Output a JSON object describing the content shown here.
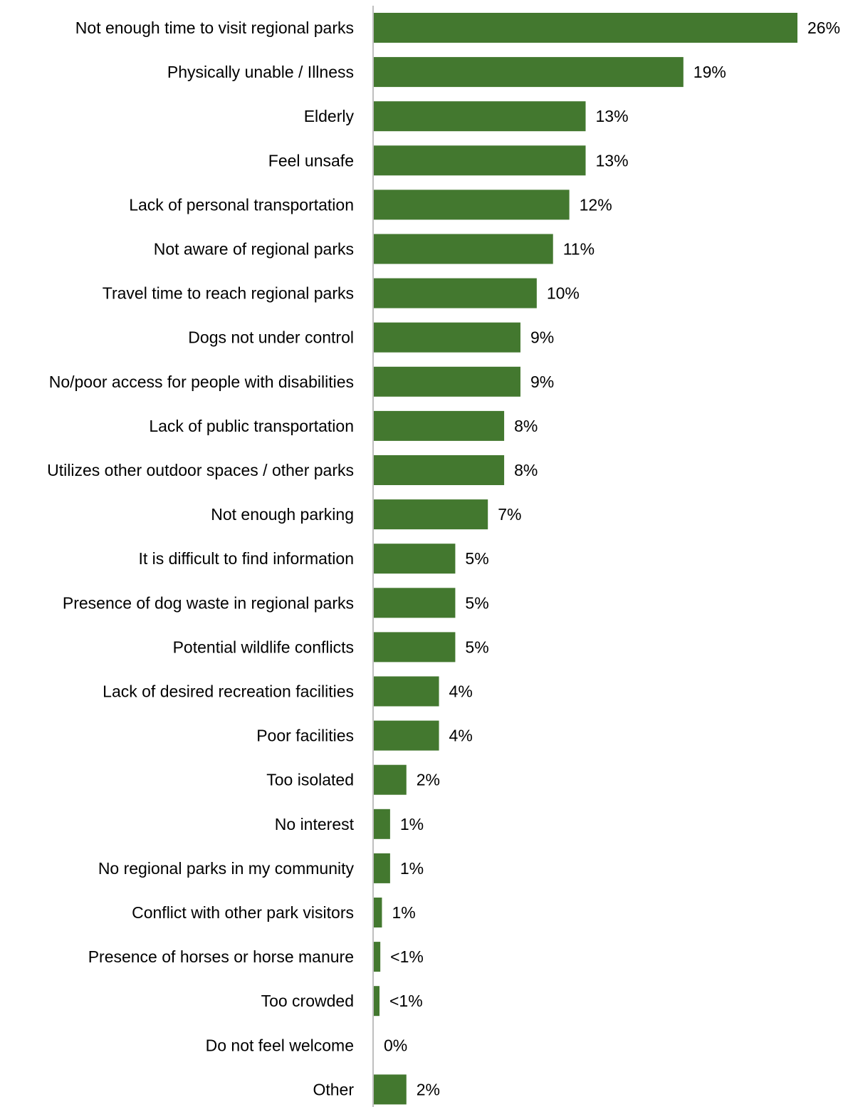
{
  "chart_data": {
    "type": "bar",
    "orientation": "horizontal",
    "title": "",
    "xlabel": "",
    "ylabel": "",
    "xlim": [
      0,
      26
    ],
    "grid": false,
    "legend": "none",
    "bar_color": "#43782f",
    "axis_color": "#bfbfbf",
    "categories": [
      "Not enough time to visit regional parks",
      "Physically unable / Illness",
      "Elderly",
      "Feel unsafe",
      "Lack of personal transportation",
      "Not aware of regional parks",
      "Travel time to reach regional parks",
      "Dogs not under control",
      "No/poor access for people with disabilities",
      "Lack of public transportation",
      "Utilizes other outdoor spaces / other parks",
      "Not enough parking",
      "It is difficult to find information",
      "Presence of dog waste in regional parks",
      "Potential wildlife conflicts",
      "Lack of desired recreation facilities",
      "Poor facilities",
      "Too isolated",
      "No interest",
      "No regional parks in my community",
      "Conflict with other park visitors",
      "Presence of horses or horse manure",
      "Too crowded",
      "Do not feel welcome",
      "Other"
    ],
    "values": [
      26,
      19,
      13,
      13,
      12,
      11,
      10,
      9,
      9,
      8,
      8,
      7,
      5,
      5,
      5,
      4,
      4,
      2,
      1,
      1,
      0.5,
      0.4,
      0.35,
      0,
      2
    ],
    "value_labels": [
      "26%",
      "19%",
      "13%",
      "13%",
      "12%",
      "11%",
      "10%",
      "9%",
      "9%",
      "8%",
      "8%",
      "7%",
      "5%",
      "5%",
      "5%",
      "4%",
      "4%",
      "2%",
      "1%",
      "1%",
      "1%",
      "<1%",
      "<1%",
      "0%",
      "2%"
    ]
  }
}
